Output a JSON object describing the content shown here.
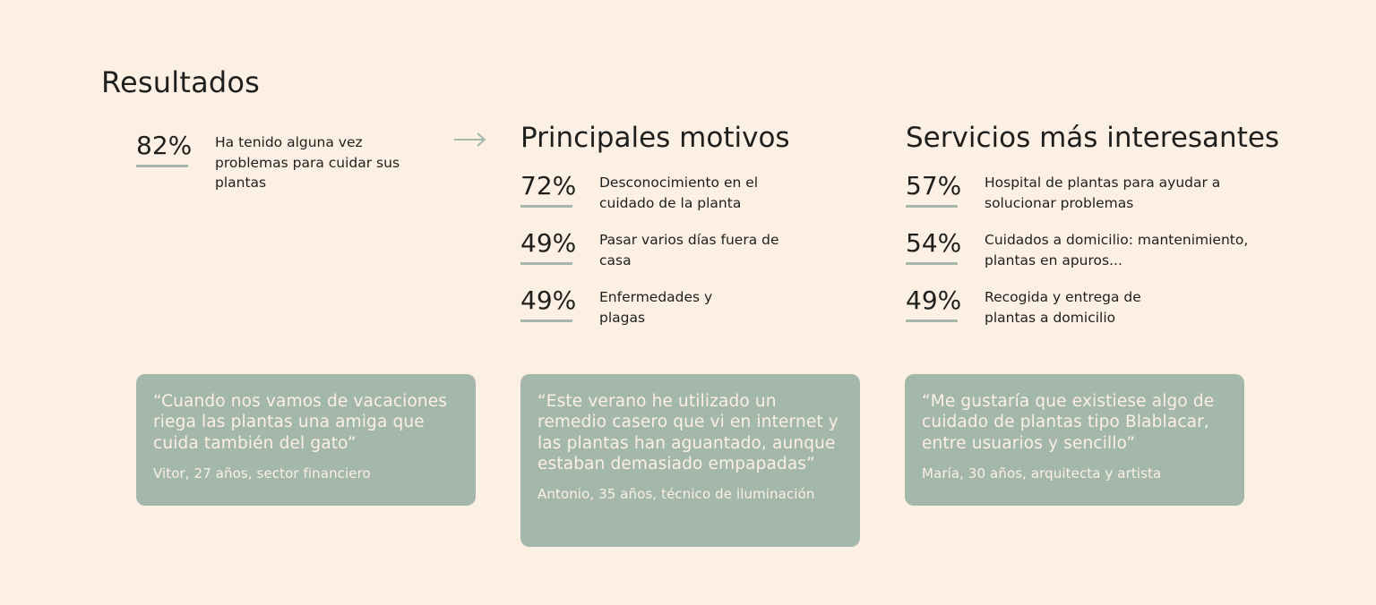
{
  "title": "Resultados",
  "overall": {
    "percent": "82%",
    "text": "Ha tenido alguna vez problemas para cuidar sus plantas"
  },
  "motives": {
    "title": "Principales motivos",
    "items": [
      {
        "percent": "72%",
        "text": "Desconocimiento en el cuidado de la planta"
      },
      {
        "percent": "49%",
        "text": "Pasar varios días fuera de casa"
      },
      {
        "percent": "49%",
        "text": "Enfermedades y plagas"
      }
    ]
  },
  "services": {
    "title": "Servicios más interesantes",
    "items": [
      {
        "percent": "57%",
        "text": "Hospital de plantas para ayudar a solucionar problemas"
      },
      {
        "percent": "54%",
        "text": "Cuidados a domicilio: mantenimiento, plantas en apuros..."
      },
      {
        "percent": "49%",
        "text": "Recogida y entrega de plantas a domicilio"
      }
    ]
  },
  "quotes": [
    {
      "text": "“Cuando nos vamos de vacaciones riega las plantas una amiga que cuida también del gato”",
      "author": "Vitor, 27 años, sector financiero"
    },
    {
      "text": "“Este verano he utilizado un remedio casero que vi en internet y las plantas han aguantado, aunque estaban demasiado empapadas”",
      "author": "Antonio, 35 años, técnico de iluminación"
    },
    {
      "text": "“Me gustaría que existiese algo de cuidado de plantas tipo Blablacar, entre usuarios y sencillo”",
      "author": "María, 30 años, arquitecta y artista"
    }
  ],
  "colors": {
    "background": "#fbf0e3",
    "accent": "#a4b7ab",
    "text": "#1f1f1d"
  },
  "icons": {
    "arrow": "arrow-right-icon"
  }
}
